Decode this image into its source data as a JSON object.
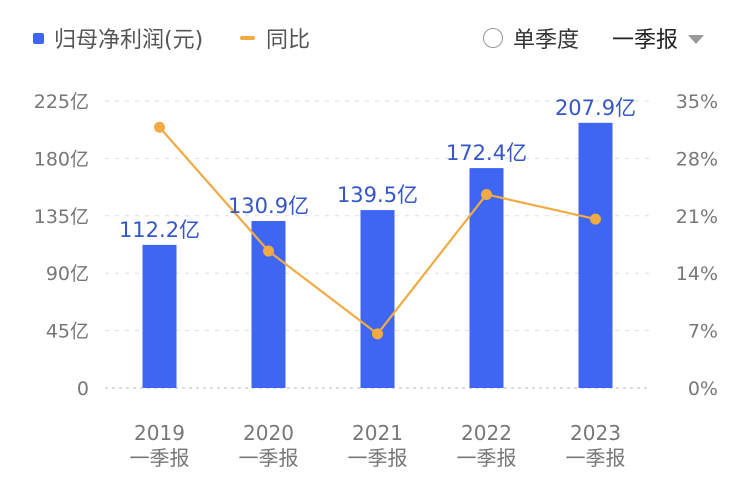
{
  "legend": {
    "bar_label": "归母净利润(元)",
    "line_label": "同比"
  },
  "controls": {
    "single_quarter_label": "单季度",
    "period_selected": "一季报"
  },
  "colors": {
    "bar": "#3f66f2",
    "line": "#f0ab45",
    "bar_label": "#3556c8",
    "axis_text": "#777777",
    "grid": "#dddddd"
  },
  "chart_data": {
    "type": "bar",
    "categories": [
      [
        "2019",
        "一季报"
      ],
      [
        "2020",
        "一季报"
      ],
      [
        "2021",
        "一季报"
      ],
      [
        "2022",
        "一季报"
      ],
      [
        "2023",
        "一季报"
      ]
    ],
    "series": [
      {
        "name": "归母净利润(元)",
        "type": "bar",
        "axis": "left",
        "values": [
          112.2,
          130.9,
          139.5,
          172.4,
          207.9
        ],
        "data_labels": [
          "112.2亿",
          "130.9亿",
          "139.5亿",
          "172.4亿",
          "207.9亿"
        ]
      },
      {
        "name": "同比",
        "type": "line",
        "axis": "right",
        "values": [
          31.8,
          16.7,
          6.6,
          23.6,
          20.6
        ]
      }
    ],
    "left_axis": {
      "min": 0,
      "max": 225,
      "ticks": [
        0,
        45,
        90,
        135,
        180,
        225
      ],
      "tick_labels": [
        "0",
        "45亿",
        "90亿",
        "135亿",
        "180亿",
        "225亿"
      ]
    },
    "right_axis": {
      "min": 0,
      "max": 35,
      "ticks": [
        0,
        7,
        14,
        21,
        28,
        35
      ],
      "tick_labels": [
        "0%",
        "7%",
        "14%",
        "21%",
        "28%",
        "35%"
      ]
    },
    "grid": true
  }
}
